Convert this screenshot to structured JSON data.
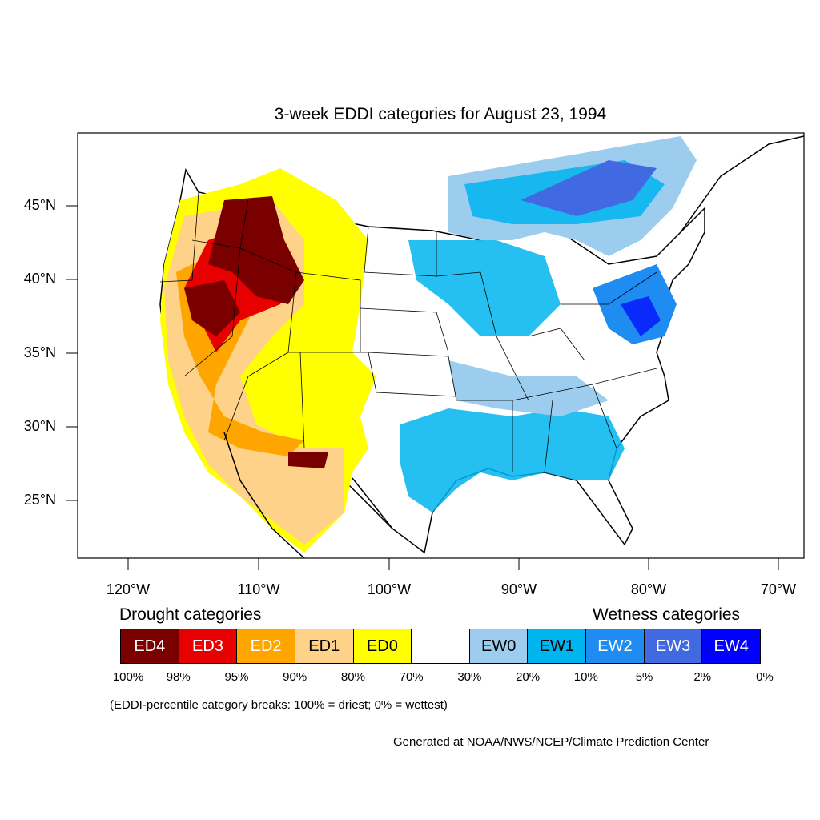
{
  "title": "3-week EDDI categories for August 23, 1994",
  "y_axis_labels": [
    "45°N",
    "40°N",
    "35°N",
    "30°N",
    "25°N"
  ],
  "x_axis_labels": [
    "120°W",
    "110°W",
    "100°W",
    "90°W",
    "80°W",
    "70°W"
  ],
  "legend": {
    "drought_heading": "Drought categories",
    "wetness_heading": "Wetness categories",
    "categories": [
      {
        "label": "ED4",
        "color": "#7a0000",
        "text_color": "#ffffff"
      },
      {
        "label": "ED3",
        "color": "#e60000",
        "text_color": "#ffffff"
      },
      {
        "label": "ED2",
        "color": "#ffa500",
        "text_color": "#ffffff"
      },
      {
        "label": "ED1",
        "color": "#ffd28a",
        "text_color": "#000000"
      },
      {
        "label": "ED0",
        "color": "#ffff00",
        "text_color": "#000000"
      },
      {
        "label": "",
        "color": "#ffffff",
        "text_color": "#000000"
      },
      {
        "label": "EW0",
        "color": "#9dcdee",
        "text_color": "#000000"
      },
      {
        "label": "EW1",
        "color": "#00b4f0",
        "text_color": "#000000"
      },
      {
        "label": "EW2",
        "color": "#1e8cf0",
        "text_color": "#ffffff"
      },
      {
        "label": "EW3",
        "color": "#4169e1",
        "text_color": "#ffffff"
      },
      {
        "label": "EW4",
        "color": "#0000ff",
        "text_color": "#ffffff"
      }
    ],
    "percent_breaks": [
      "100%",
      "98%",
      "95%",
      "90%",
      "80%",
      "70%",
      "30%",
      "20%",
      "10%",
      "5%",
      "2%",
      "0%"
    ]
  },
  "note": "(EDDI-percentile category breaks: 100% = driest; 0% = wettest)",
  "credit": "Generated at NOAA/NWS/NCEP/Climate Prediction Center"
}
